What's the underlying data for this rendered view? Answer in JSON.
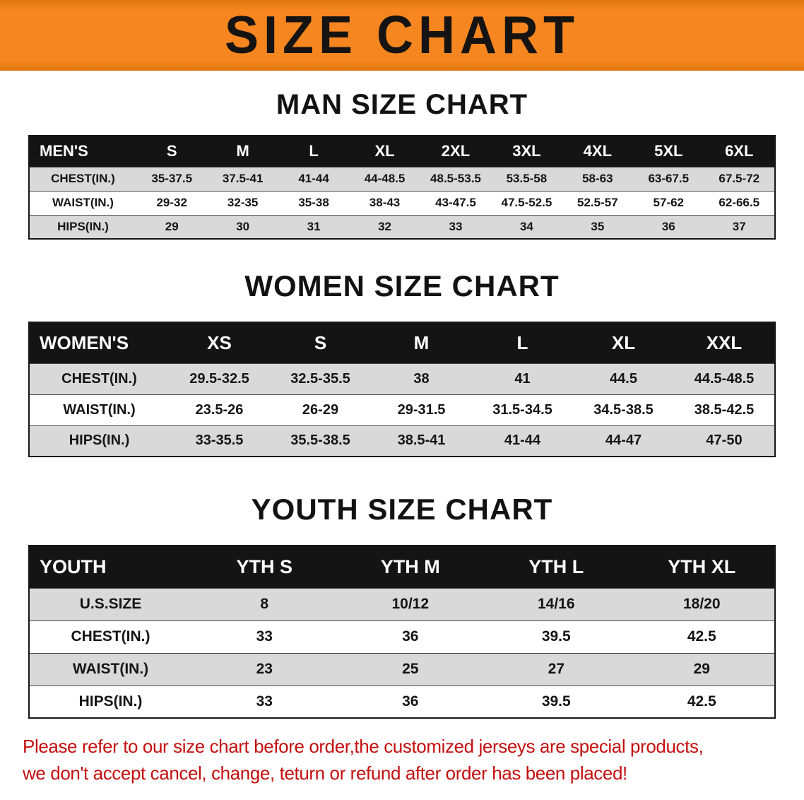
{
  "banner": {
    "title": "SIZE CHART"
  },
  "tables": [
    {
      "heading": "MAN SIZE CHART",
      "header": {
        "label": "MEN'S",
        "sizes": [
          "S",
          "M",
          "L",
          "XL",
          "2XL",
          "3XL",
          "4XL",
          "5XL",
          "6XL"
        ]
      },
      "rows": [
        {
          "label": "CHEST(IN.)",
          "values": [
            "35-37.5",
            "37.5-41",
            "41-44",
            "44-48.5",
            "48.5-53.5",
            "53.5-58",
            "58-63",
            "63-67.5",
            "67.5-72"
          ]
        },
        {
          "label": "WAIST(IN.)",
          "values": [
            "29-32",
            "32-35",
            "35-38",
            "38-43",
            "43-47.5",
            "47.5-52.5",
            "52.5-57",
            "57-62",
            "62-66.5"
          ]
        },
        {
          "label": "HIPS(IN.)",
          "values": [
            "29",
            "30",
            "31",
            "32",
            "33",
            "34",
            "35",
            "36",
            "37"
          ]
        }
      ]
    },
    {
      "heading": "WOMEN SIZE CHART",
      "header": {
        "label": "WOMEN'S",
        "sizes": [
          "XS",
          "S",
          "M",
          "L",
          "XL",
          "XXL"
        ]
      },
      "rows": [
        {
          "label": "CHEST(IN.)",
          "values": [
            "29.5-32.5",
            "32.5-35.5",
            "38",
            "41",
            "44.5",
            "44.5-48.5"
          ]
        },
        {
          "label": "WAIST(IN.)",
          "values": [
            "23.5-26",
            "26-29",
            "29-31.5",
            "31.5-34.5",
            "34.5-38.5",
            "38.5-42.5"
          ]
        },
        {
          "label": "HIPS(IN.)",
          "values": [
            "33-35.5",
            "35.5-38.5",
            "38.5-41",
            "41-44",
            "44-47",
            "47-50"
          ]
        }
      ]
    },
    {
      "heading": "YOUTH SIZE CHART",
      "header": {
        "label": "YOUTH",
        "sizes": [
          "YTH S",
          "YTH M",
          "YTH L",
          "YTH XL"
        ]
      },
      "rows": [
        {
          "label": "U.S.SIZE",
          "values": [
            "8",
            "10/12",
            "14/16",
            "18/20"
          ]
        },
        {
          "label": "CHEST(IN.)",
          "values": [
            "33",
            "36",
            "39.5",
            "42.5"
          ]
        },
        {
          "label": "WAIST(IN.)",
          "values": [
            "23",
            "25",
            "27",
            "29"
          ]
        },
        {
          "label": "HIPS(IN.)",
          "values": [
            "33",
            "36",
            "39.5",
            "42.5"
          ]
        }
      ]
    }
  ],
  "footnote": {
    "line1": "Please refer to our size chart before order,the customized jerseys are special products,",
    "line2": "we don't accept cancel, change, teturn or refund after order has been placed!"
  },
  "colors": {
    "banner_orange": "#f6861f",
    "header_black": "#141414",
    "row_gray": "#d9d9d9",
    "footnote_red": "#c40f0f"
  }
}
